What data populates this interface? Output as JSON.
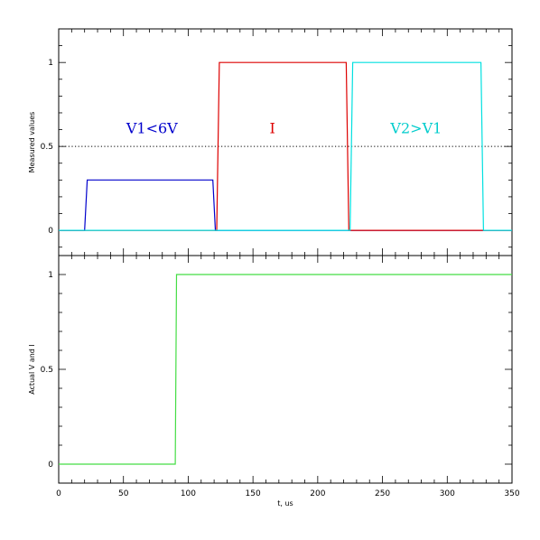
{
  "chart_data": [
    {
      "type": "line",
      "title": "",
      "xlabel": "",
      "ylabel": "Measured values",
      "xlim": [
        0,
        350
      ],
      "ylim": [
        -0.15,
        1.2
      ],
      "grid": false,
      "y_ticks": [
        0,
        0.5,
        1
      ],
      "y_tick_labels": [
        "0",
        "0.5",
        "1"
      ],
      "reference_lines": [
        {
          "y": 0.5,
          "style": "dotted",
          "color": "#000000"
        }
      ],
      "series": [
        {
          "color": "#0000cc",
          "x": [
            0,
            20,
            22,
            119,
            121,
            350
          ],
          "y": [
            0,
            0,
            0.3,
            0.3,
            0,
            0
          ]
        },
        {
          "color": "#dd0000",
          "x": [
            0,
            122,
            124,
            222,
            224,
            350
          ],
          "y": [
            0,
            0,
            1,
            1,
            0,
            0
          ]
        },
        {
          "color": "#00e0e0",
          "x": [
            0,
            225,
            227,
            326,
            328,
            350
          ],
          "y": [
            0,
            0,
            1,
            1,
            0,
            0
          ]
        }
      ],
      "annotations": [
        {
          "text": "V1<6V",
          "x": 72,
          "y": 0.58,
          "color": "#0000cc"
        },
        {
          "text": "I",
          "x": 165,
          "y": 0.58,
          "color": "#dd0000"
        },
        {
          "text": "V2>V1",
          "x": 276,
          "y": 0.58,
          "color": "#00cccc"
        }
      ]
    },
    {
      "type": "line",
      "title": "",
      "xlabel": "t, us",
      "ylabel": "Actual V and I",
      "xlim": [
        0,
        350
      ],
      "ylim": [
        -0.1,
        1.1
      ],
      "grid": false,
      "x_ticks": [
        0,
        50,
        100,
        150,
        200,
        250,
        300,
        350
      ],
      "x_tick_labels": [
        "0",
        "50",
        "100",
        "150",
        "200",
        "250",
        "300",
        "350"
      ],
      "y_ticks": [
        0,
        0.5,
        1
      ],
      "y_tick_labels": [
        "0",
        "0.5",
        "1"
      ],
      "series": [
        {
          "color": "#44dd44",
          "x": [
            0,
            90,
            91,
            350
          ],
          "y": [
            0,
            0,
            1,
            1
          ]
        }
      ]
    }
  ]
}
